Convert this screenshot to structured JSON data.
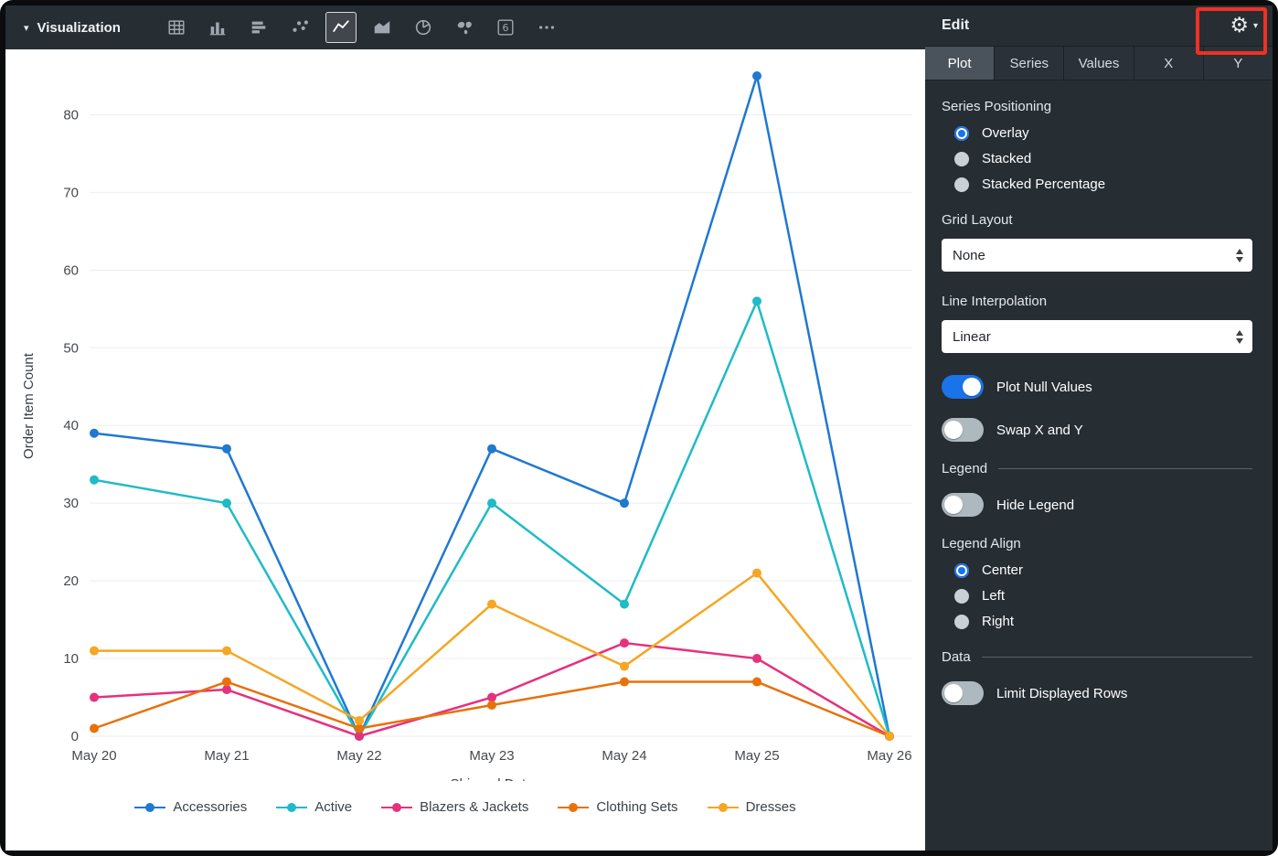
{
  "topbar": {
    "title": "Visualization",
    "viz_types": [
      "table",
      "column",
      "bar",
      "scatter",
      "line",
      "area",
      "pie",
      "map",
      "single-value",
      "more"
    ],
    "selected_viz": "line"
  },
  "chart_data": {
    "type": "line",
    "x": [
      "May 20",
      "May 21",
      "May 22",
      "May 23",
      "May 24",
      "May 25",
      "May 26"
    ],
    "xlabel": "Shipped Date",
    "ylabel": "Order Item Count",
    "ylim": [
      0,
      85
    ],
    "yticks": [
      0,
      10,
      20,
      30,
      40,
      50,
      60,
      70,
      80
    ],
    "grid": "horizontal",
    "legend_position": "bottom-center",
    "series": [
      {
        "name": "Accessories",
        "color": "#1F78D1",
        "values": [
          39,
          37,
          0,
          37,
          30,
          85,
          0
        ]
      },
      {
        "name": "Active",
        "color": "#1FBBC6",
        "values": [
          33,
          30,
          0,
          30,
          17,
          56,
          0
        ]
      },
      {
        "name": "Blazers & Jackets",
        "color": "#E5317E",
        "values": [
          5,
          6,
          0,
          5,
          12,
          10,
          0
        ]
      },
      {
        "name": "Clothing Sets",
        "color": "#E8710A",
        "values": [
          1,
          7,
          1,
          4,
          7,
          7,
          0
        ]
      },
      {
        "name": "Dresses",
        "color": "#F5A623",
        "values": [
          11,
          11,
          2,
          17,
          9,
          21,
          0
        ]
      }
    ]
  },
  "panel": {
    "title": "Edit",
    "tabs": [
      {
        "label": "Plot",
        "active": true
      },
      {
        "label": "Series",
        "active": false
      },
      {
        "label": "Values",
        "active": false
      },
      {
        "label": "X",
        "active": false
      },
      {
        "label": "Y",
        "active": false
      }
    ],
    "series_positioning": {
      "label": "Series Positioning",
      "options": [
        {
          "label": "Overlay",
          "selected": true
        },
        {
          "label": "Stacked",
          "selected": false
        },
        {
          "label": "Stacked Percentage",
          "selected": false
        }
      ]
    },
    "grid_layout": {
      "label": "Grid Layout",
      "value": "None"
    },
    "line_interpolation": {
      "label": "Line Interpolation",
      "value": "Linear"
    },
    "plot_null_values": {
      "label": "Plot Null Values",
      "on": true
    },
    "swap_x_y": {
      "label": "Swap X and Y",
      "on": false
    },
    "legend_section": {
      "label": "Legend"
    },
    "hide_legend": {
      "label": "Hide Legend",
      "on": false
    },
    "legend_align": {
      "label": "Legend Align",
      "options": [
        {
          "label": "Center",
          "selected": true
        },
        {
          "label": "Left",
          "selected": false
        },
        {
          "label": "Right",
          "selected": false
        }
      ]
    },
    "data_section": {
      "label": "Data"
    },
    "limit_rows": {
      "label": "Limit Displayed Rows",
      "on": false
    }
  },
  "annotation": {
    "type": "highlight-box",
    "target": "settings-gear",
    "color": "#EF3124"
  },
  "colors": {
    "accent": "#1A73E8",
    "panel_bg": "#262D33",
    "chart_bg": "#FFFFFF"
  }
}
